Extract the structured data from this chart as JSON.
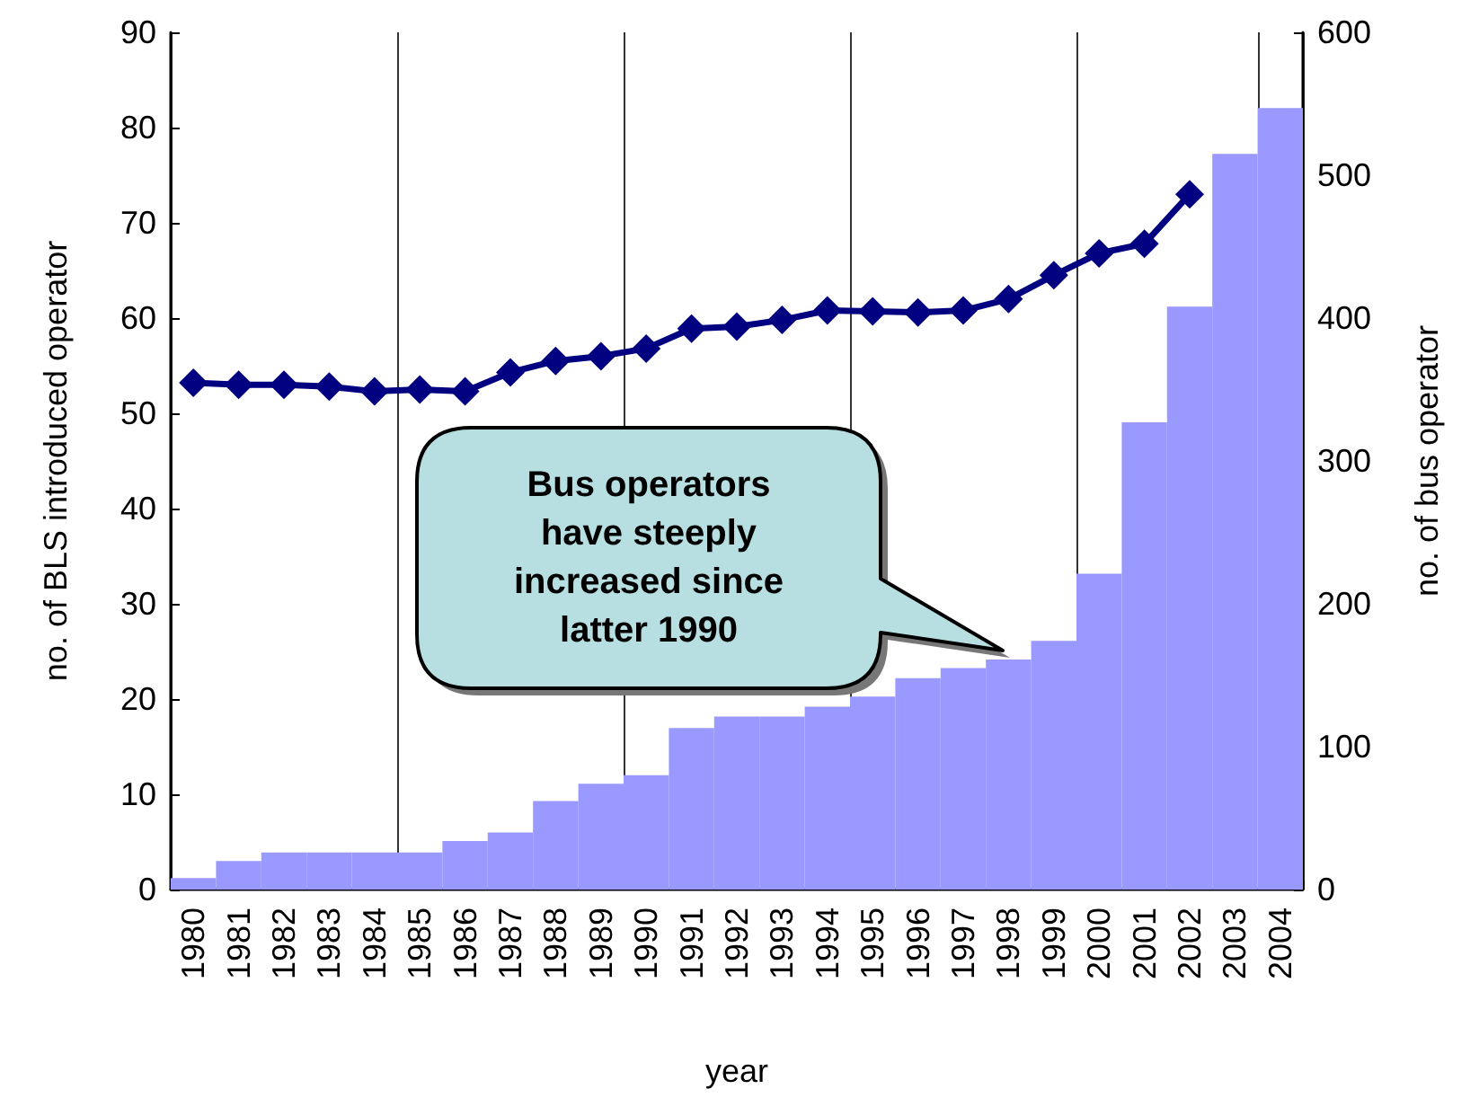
{
  "chart_data": {
    "type": "bar",
    "xlabel": "year",
    "ylabel": "no. of BLS introduced operator",
    "y2label": "no. of bus operator",
    "categories": [
      "1980",
      "1981",
      "1982",
      "1983",
      "1984",
      "1985",
      "1986",
      "1987",
      "1988",
      "1989",
      "1990",
      "1991",
      "1992",
      "1993",
      "1994",
      "1995",
      "1996",
      "1997",
      "1998",
      "1999",
      "2000",
      "2001",
      "2002",
      "2003",
      "2004"
    ],
    "series": [
      {
        "axis": "y2",
        "color": "#9999ff",
        "values": [
          8,
          20,
          26,
          26,
          26,
          26,
          34,
          40,
          62,
          74,
          80,
          113,
          121,
          121,
          128,
          135,
          148,
          155,
          161,
          174,
          221,
          327,
          408,
          515,
          547
        ]
      },
      {
        "type": "line",
        "axis": "y",
        "color": "#000080",
        "marker": "diamond",
        "values": [
          53.2,
          53,
          53,
          52.8,
          52.3,
          52.5,
          52.3,
          54.3,
          55.5,
          56,
          56.8,
          58.9,
          59.1,
          59.8,
          60.8,
          60.7,
          60.6,
          60.8,
          62,
          64.5,
          66.8,
          67.8,
          73,
          null,
          null
        ]
      }
    ],
    "ylim": [
      0,
      90
    ],
    "yticks": [
      0,
      10,
      20,
      30,
      40,
      50,
      60,
      70,
      80,
      90
    ],
    "y2lim": [
      0,
      600
    ],
    "y2ticks": [
      0,
      100,
      200,
      300,
      400,
      500,
      600
    ],
    "grid": "x",
    "annotations": [
      "Bus operators have steeply increased since latter 1990"
    ]
  }
}
